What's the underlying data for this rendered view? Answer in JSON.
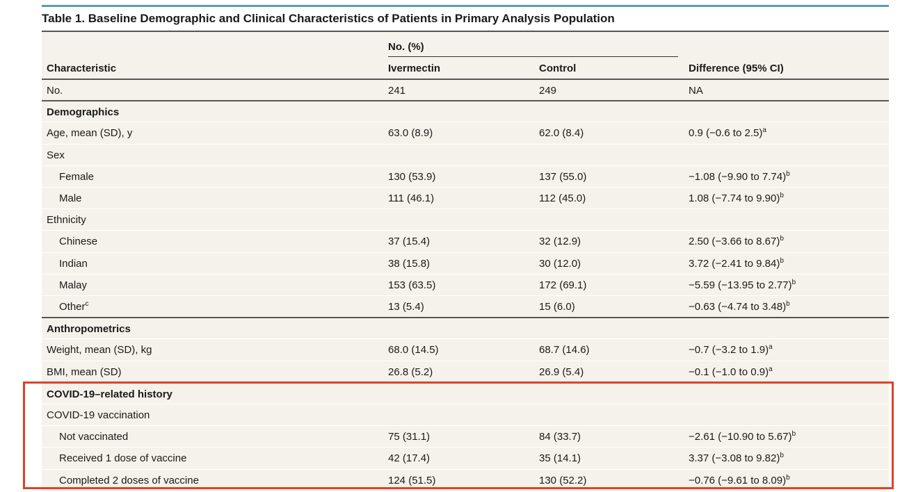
{
  "table": {
    "title": "Table 1. Baseline Demographic and Clinical Characteristics of Patients in Primary Analysis Population",
    "header": {
      "group": "No. (%)",
      "columns": [
        "Characteristic",
        "Ivermectin",
        "Control",
        "Difference (95% CI)"
      ]
    },
    "totals": {
      "label": "No.",
      "values": [
        "241",
        "249",
        "NA"
      ]
    },
    "sections": [
      {
        "title": "Demographics",
        "rows": [
          {
            "label": "Age, mean (SD), y",
            "values": [
              "63.0 (8.9)",
              "62.0 (8.4)",
              "0.9 (−0.6 to 2.5)"
            ],
            "note": "a"
          },
          {
            "label": "Sex",
            "subrows": [
              {
                "label": "Female",
                "values": [
                  "130 (53.9)",
                  "137 (55.0)",
                  "−1.08 (−9.90 to 7.74)"
                ],
                "note": "b"
              },
              {
                "label": "Male",
                "values": [
                  "111 (46.1)",
                  "112 (45.0)",
                  "1.08 (−7.74 to 9.90)"
                ],
                "note": "b"
              }
            ]
          },
          {
            "label": "Ethnicity",
            "subrows": [
              {
                "label": "Chinese",
                "values": [
                  "37 (15.4)",
                  "32 (12.9)",
                  "2.50 (−3.66 to 8.67)"
                ],
                "note": "b"
              },
              {
                "label": "Indian",
                "values": [
                  "38 (15.8)",
                  "30 (12.0)",
                  "3.72 (−2.41 to 9.84)"
                ],
                "note": "b"
              },
              {
                "label": "Malay",
                "values": [
                  "153 (63.5)",
                  "172 (69.1)",
                  "−5.59 (−13.95 to 2.77)"
                ],
                "note": "b"
              },
              {
                "label": "Other",
                "label_note": "c",
                "values": [
                  "13 (5.4)",
                  "15 (6.0)",
                  "−0.63 (−4.74 to 3.48)"
                ],
                "note": "b"
              }
            ]
          }
        ]
      },
      {
        "title": "Anthropometrics",
        "rows": [
          {
            "label": "Weight, mean (SD), kg",
            "values": [
              "68.0 (14.5)",
              "68.7 (14.6)",
              "−0.7 (−3.2 to 1.9)"
            ],
            "note": "a"
          },
          {
            "label": "BMI, mean (SD)",
            "values": [
              "26.8 (5.2)",
              "26.9 (5.4)",
              "−0.1 (−1.0 to 0.9)"
            ],
            "note": "a"
          }
        ]
      },
      {
        "title": "COVID-19–related history",
        "rows": [
          {
            "label": "COVID-19 vaccination",
            "subrows": [
              {
                "label": "Not vaccinated",
                "values": [
                  "75 (31.1)",
                  "84 (33.7)",
                  "−2.61 (−10.90 to 5.67)"
                ],
                "note": "b"
              },
              {
                "label": "Received 1 dose of vaccine",
                "values": [
                  "42 (17.4)",
                  "35 (14.1)",
                  "3.37 (−3.08 to 9.82)"
                ],
                "note": "b"
              },
              {
                "label": "Completed 2 doses of vaccine",
                "values": [
                  "124 (51.5)",
                  "130 (52.2)",
                  "−0.76 (−9.61 to 8.09)"
                ],
                "note": "b"
              }
            ]
          }
        ]
      }
    ]
  }
}
